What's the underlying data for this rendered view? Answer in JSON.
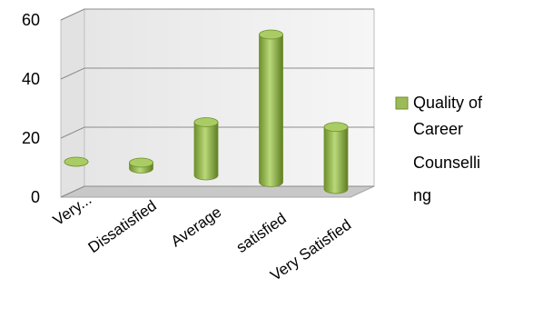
{
  "chart_data": {
    "type": "bar",
    "style": "3d-cylinder",
    "categories": [
      "Very...",
      "Dissatisfied",
      "Average",
      "satisfied",
      "Very Satisfied"
    ],
    "series": [
      {
        "name": "Quality of Career Counselling",
        "values": [
          0,
          2,
          18,
          50,
          21
        ]
      }
    ],
    "legend_lines": [
      "Quality of",
      "Career",
      "Counselli",
      "ng"
    ],
    "y_ticks": [
      "0",
      "20",
      "40",
      "60"
    ],
    "ylim": [
      0,
      60
    ],
    "grid": true,
    "legend_position": "right",
    "bar_color": "#9bbb59",
    "wall_color": "#f2f2f2",
    "floor_color": "#bfbfbf"
  }
}
